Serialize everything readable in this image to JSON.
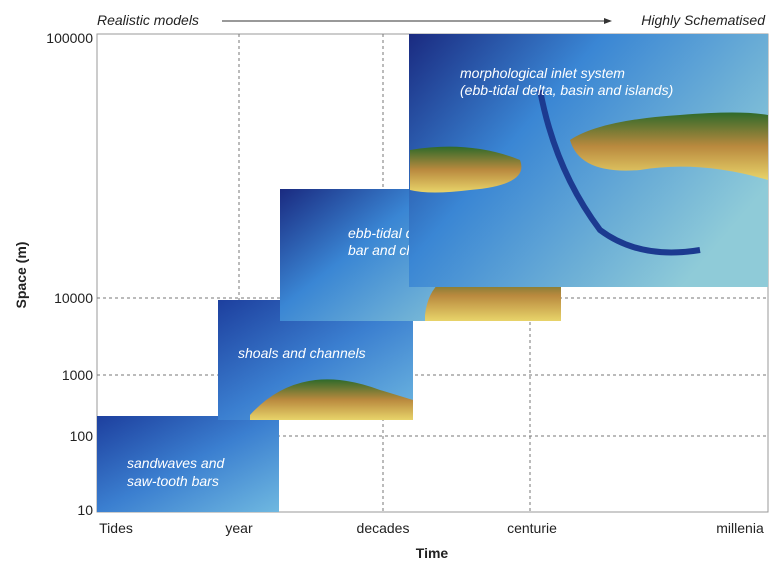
{
  "header": {
    "left": "Realistic models",
    "right": "Highly Schematised"
  },
  "axes": {
    "y_title": "Space (m)",
    "x_title": "Time",
    "y_ticks": [
      "100000",
      "10000",
      "1000",
      "100",
      "10"
    ],
    "x_ticks": [
      "Tides",
      "year",
      "decades",
      "centurie",
      "millenia"
    ]
  },
  "panels": [
    {
      "label": [
        "sandwaves and",
        "saw-tooth bars"
      ]
    },
    {
      "label": [
        "shoals and channels"
      ]
    },
    {
      "label": [
        "ebb-tidal delta",
        "bar and channel migration"
      ]
    },
    {
      "label": [
        "morphological inlet system",
        "(ebb-tidal delta, basin and islands)"
      ]
    }
  ]
}
